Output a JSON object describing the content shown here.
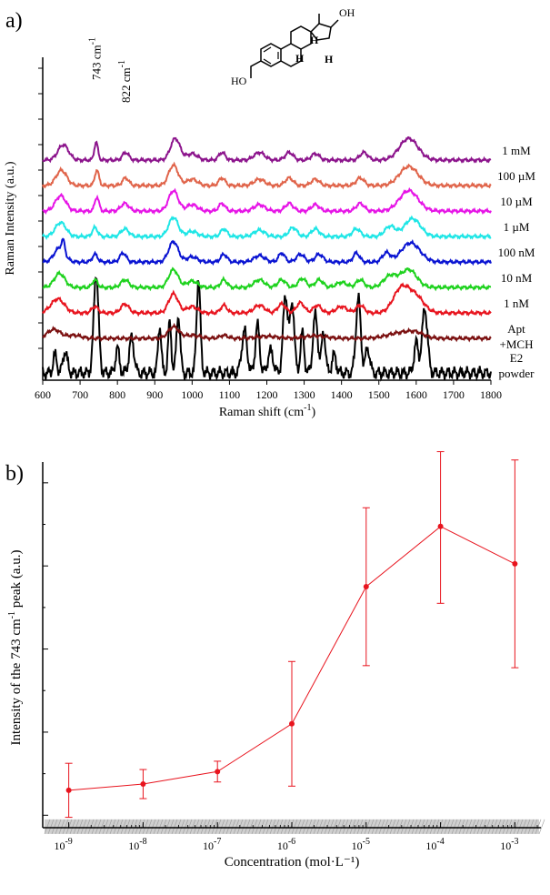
{
  "chart_data": [
    {
      "type": "line",
      "panel_label": "a)",
      "xlabel": "Raman shift (cm",
      "xlabel_sup": "-1",
      "xlabel_end": ")",
      "ylabel": "Raman Intensity (a.u.)",
      "xlim": [
        600,
        1800
      ],
      "xticks": [
        600,
        700,
        800,
        900,
        1000,
        1100,
        1200,
        1300,
        1400,
        1500,
        1600,
        1700,
        1800
      ],
      "peak_annotations": [
        {
          "text": "743 cm",
          "sup": "-1",
          "x": 743
        },
        {
          "text": "822 cm",
          "sup": "-1",
          "x": 822
        }
      ],
      "molecule_labels": [
        "OH",
        "HO",
        "H",
        "H",
        "H"
      ],
      "series": [
        {
          "name": "E2 powder",
          "label_lines": [
            "E2",
            "powder"
          ],
          "color": "#000000",
          "offset": 0,
          "peaks": [
            [
              633,
              0.18,
              7
            ],
            [
              660,
              0.22,
              8
            ],
            [
              743,
              1.0,
              9
            ],
            [
              800,
              0.25,
              7
            ],
            [
              838,
              0.35,
              9
            ],
            [
              913,
              0.48,
              6
            ],
            [
              940,
              0.5,
              6
            ],
            [
              963,
              0.58,
              7
            ],
            [
              1017,
              0.95,
              7
            ],
            [
              1140,
              0.42,
              10
            ],
            [
              1175,
              0.48,
              8
            ],
            [
              1210,
              0.22,
              10
            ],
            [
              1250,
              0.78,
              9
            ],
            [
              1268,
              0.7,
              8
            ],
            [
              1295,
              0.4,
              7
            ],
            [
              1330,
              0.58,
              9
            ],
            [
              1352,
              0.42,
              7
            ],
            [
              1380,
              0.18,
              8
            ],
            [
              1445,
              0.75,
              9
            ],
            [
              1470,
              0.25,
              8
            ],
            [
              1600,
              0.3,
              8
            ],
            [
              1623,
              0.65,
              10
            ]
          ],
          "values": [
            0.0
          ]
        },
        {
          "name": "Apt +MCH",
          "label_lines": [
            "Apt",
            "+MCH"
          ],
          "color": "#7b1010",
          "offset": 1,
          "peaks": [
            [
              630,
              0.35,
              25
            ],
            [
              685,
              0.12,
              25
            ],
            [
              950,
              0.45,
              20
            ],
            [
              1000,
              0.12,
              30
            ],
            [
              1085,
              0.12,
              15
            ],
            [
              1200,
              0.08,
              40
            ],
            [
              1330,
              0.1,
              40
            ],
            [
              1560,
              0.22,
              50
            ],
            [
              1600,
              0.15,
              30
            ]
          ],
          "values": [
            1.0
          ]
        },
        {
          "name": "1 nM",
          "label_lines": [
            "1 nM"
          ],
          "color": "#e8141e",
          "offset": 2,
          "peaks": [
            [
              640,
              0.55,
              25
            ],
            [
              740,
              0.25,
              12
            ],
            [
              820,
              0.35,
              15
            ],
            [
              950,
              0.75,
              18
            ],
            [
              1000,
              0.25,
              20
            ],
            [
              1085,
              0.3,
              12
            ],
            [
              1180,
              0.3,
              20
            ],
            [
              1240,
              0.35,
              15
            ],
            [
              1290,
              0.4,
              15
            ],
            [
              1335,
              0.3,
              15
            ],
            [
              1400,
              0.25,
              20
            ],
            [
              1450,
              0.3,
              15
            ],
            [
              1560,
              0.95,
              30
            ],
            [
              1600,
              0.6,
              30
            ]
          ],
          "values": [
            2.0
          ]
        },
        {
          "name": "10 nM",
          "label_lines": [
            "10 nM"
          ],
          "color": "#1ed21e",
          "offset": 3,
          "peaks": [
            [
              645,
              0.55,
              20
            ],
            [
              740,
              0.3,
              10
            ],
            [
              820,
              0.3,
              15
            ],
            [
              950,
              0.7,
              18
            ],
            [
              1000,
              0.25,
              20
            ],
            [
              1085,
              0.3,
              12
            ],
            [
              1180,
              0.3,
              20
            ],
            [
              1240,
              0.3,
              15
            ],
            [
              1295,
              0.35,
              15
            ],
            [
              1340,
              0.3,
              15
            ],
            [
              1400,
              0.2,
              20
            ],
            [
              1450,
              0.3,
              15
            ],
            [
              1530,
              0.45,
              25
            ],
            [
              1580,
              0.7,
              30
            ]
          ],
          "values": [
            3.0
          ]
        },
        {
          "name": "100 nM",
          "label_lines": [
            "100 nM"
          ],
          "color": "#0a14d2",
          "offset": 4,
          "peaks": [
            [
              645,
              0.55,
              20
            ],
            [
              655,
              0.45,
              6
            ],
            [
              740,
              0.3,
              10
            ],
            [
              815,
              0.35,
              12
            ],
            [
              950,
              0.8,
              18
            ],
            [
              1000,
              0.2,
              20
            ],
            [
              1085,
              0.3,
              12
            ],
            [
              1180,
              0.25,
              20
            ],
            [
              1240,
              0.35,
              12
            ],
            [
              1290,
              0.3,
              15
            ],
            [
              1340,
              0.3,
              15
            ],
            [
              1440,
              0.35,
              12
            ],
            [
              1520,
              0.35,
              15
            ],
            [
              1585,
              0.75,
              35
            ]
          ],
          "values": [
            4.0
          ]
        },
        {
          "name": "1 µM",
          "label_lines": [
            "1 µM"
          ],
          "color": "#1ee6e6",
          "offset": 5,
          "peaks": [
            [
              648,
              0.55,
              20
            ],
            [
              740,
              0.35,
              10
            ],
            [
              820,
              0.3,
              15
            ],
            [
              950,
              0.75,
              18
            ],
            [
              1000,
              0.2,
              20
            ],
            [
              1085,
              0.3,
              12
            ],
            [
              1180,
              0.25,
              20
            ],
            [
              1270,
              0.35,
              15
            ],
            [
              1330,
              0.3,
              15
            ],
            [
              1440,
              0.3,
              15
            ],
            [
              1530,
              0.4,
              20
            ],
            [
              1590,
              0.7,
              30
            ]
          ],
          "values": [
            5.0
          ]
        },
        {
          "name": "10 µM",
          "label_lines": [
            "10 µM"
          ],
          "color": "#e614e6",
          "offset": 6,
          "peaks": [
            [
              648,
              0.6,
              20
            ],
            [
              745,
              0.55,
              8
            ],
            [
              820,
              0.3,
              15
            ],
            [
              950,
              0.8,
              18
            ],
            [
              1000,
              0.25,
              20
            ],
            [
              1080,
              0.3,
              12
            ],
            [
              1180,
              0.25,
              20
            ],
            [
              1260,
              0.3,
              15
            ],
            [
              1330,
              0.25,
              15
            ],
            [
              1450,
              0.3,
              15
            ],
            [
              1580,
              0.8,
              35
            ]
          ],
          "values": [
            6.0
          ]
        },
        {
          "name": "100 µM",
          "label_lines": [
            "100 µM"
          ],
          "color": "#e0644a",
          "offset": 7,
          "peaks": [
            [
              650,
              0.6,
              20
            ],
            [
              745,
              0.6,
              8
            ],
            [
              822,
              0.3,
              12
            ],
            [
              950,
              0.8,
              18
            ],
            [
              1000,
              0.25,
              20
            ],
            [
              1080,
              0.3,
              12
            ],
            [
              1180,
              0.25,
              20
            ],
            [
              1260,
              0.3,
              15
            ],
            [
              1330,
              0.25,
              15
            ],
            [
              1450,
              0.3,
              15
            ],
            [
              1580,
              0.75,
              35
            ]
          ],
          "values": [
            7.0
          ]
        },
        {
          "name": "1 mM",
          "label_lines": [
            "1 mM"
          ],
          "color": "#8c148c",
          "offset": 8,
          "peaks": [
            [
              655,
              0.6,
              20
            ],
            [
              743,
              0.7,
              7
            ],
            [
              822,
              0.3,
              12
            ],
            [
              955,
              0.85,
              18
            ],
            [
              1000,
              0.25,
              20
            ],
            [
              1080,
              0.3,
              12
            ],
            [
              1180,
              0.3,
              20
            ],
            [
              1260,
              0.3,
              15
            ],
            [
              1330,
              0.25,
              15
            ],
            [
              1460,
              0.3,
              15
            ],
            [
              1580,
              0.85,
              35
            ]
          ],
          "values": [
            8.0
          ]
        }
      ]
    },
    {
      "type": "scatter",
      "panel_label": "b)",
      "xlabel": "Concentration (mol·L⁻¹)",
      "ylabel": "Intensity of the 743 cm",
      "ylabel_sup": "-1",
      "ylabel_end": " peak (a.u.)",
      "xscale": "log",
      "xlim": [
        -9.35,
        -2.65
      ],
      "ylim": [
        -0.3,
        8.5
      ],
      "xtick_exponents": [
        -9,
        -8,
        -7,
        -6,
        -5,
        -4,
        -3
      ],
      "xtick_base": "10",
      "color": "#e8141e",
      "x": [
        -9,
        -8,
        -7,
        -6,
        -5,
        -4,
        -3
      ],
      "y": [
        0.6,
        0.75,
        1.05,
        2.2,
        5.5,
        6.95,
        6.05
      ],
      "yerr_low": [
        0.65,
        0.35,
        0.25,
        1.5,
        1.9,
        1.85,
        2.5
      ],
      "yerr_high": [
        0.65,
        0.35,
        0.25,
        1.5,
        1.9,
        1.8,
        2.5
      ],
      "baseline_band": [
        -0.45,
        -0.1
      ]
    }
  ]
}
